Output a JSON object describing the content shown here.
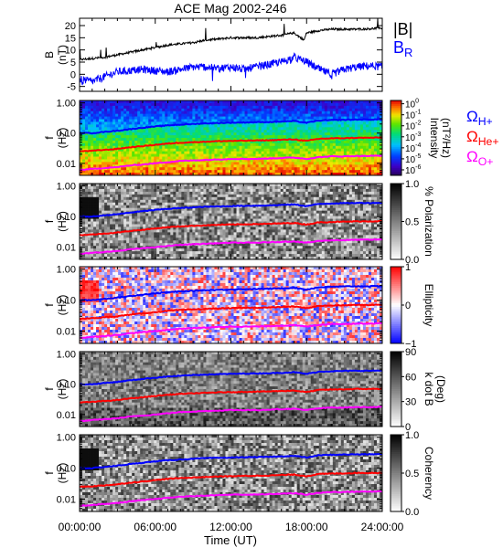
{
  "title": "ACE Mag 2002-246",
  "colors": {
    "btotal": "#000000",
    "br": "#0000ff",
    "h_plus": "#0000ff",
    "he_plus": "#ff0000",
    "o_plus": "#ff00ff"
  },
  "chart_data": [
    {
      "type": "line",
      "panel": "magnetic-field",
      "ylabel_top": "B",
      "ylabel_bottom": "(nT)",
      "ylim": [
        -7,
        23
      ],
      "yticks": [
        -5,
        0,
        5,
        10,
        15,
        20
      ],
      "ytick_labels": [
        "-5",
        "0",
        "5",
        "10",
        "15",
        "20"
      ],
      "xlim": [
        0,
        24
      ],
      "series": [
        {
          "name": "|B|",
          "color": "#000000",
          "x": [
            0,
            1,
            2,
            3,
            4,
            5,
            6,
            7,
            8,
            9,
            10,
            11,
            12,
            13,
            14,
            15,
            16,
            17,
            17.8,
            18,
            19,
            20,
            21,
            22,
            23,
            24
          ],
          "values": [
            6,
            6.5,
            7,
            8,
            9,
            10,
            11,
            12,
            12.5,
            13,
            14,
            14.5,
            15,
            15,
            15,
            15.5,
            16,
            17,
            14,
            17,
            18,
            18.5,
            18.5,
            18.5,
            18.7,
            19
          ]
        },
        {
          "name": "B_R",
          "label_main": "B",
          "label_sub": "R",
          "color": "#0000ff",
          "x": [
            0,
            1,
            2,
            3,
            4,
            5,
            6,
            7,
            8,
            9,
            10,
            11,
            12,
            13,
            14,
            15,
            16,
            17,
            18,
            19,
            20,
            21,
            22,
            23,
            24
          ],
          "values": [
            -2,
            -3,
            -1,
            1,
            1.5,
            2,
            1.5,
            1,
            2,
            3,
            3,
            2.5,
            3,
            2,
            3,
            4,
            5,
            7,
            5,
            2,
            0,
            2,
            3,
            3.5,
            3
          ]
        }
      ]
    },
    {
      "type": "heatmap",
      "panel": "intensity",
      "ylabel_top": "f",
      "ylabel_bottom": "(Hz)",
      "ylim": [
        0.004,
        1.2
      ],
      "log_y": true,
      "yticks": [
        0.01,
        0.1,
        1
      ],
      "ytick_labels": [
        "0.01",
        "0.10",
        "1.00"
      ],
      "colorbar": {
        "palette": "rainbow",
        "title_line1": "Intensity",
        "title_line2": "(nT²/Hz)",
        "log_scale": true,
        "range": [
          -6.5,
          0.3
        ],
        "ticks": [
          {
            "value": 0,
            "base": "10",
            "exp": "0"
          },
          {
            "value": -1,
            "base": "10",
            "exp": "-1"
          },
          {
            "value": -2,
            "base": "10",
            "exp": "-2"
          },
          {
            "value": -3,
            "base": "10",
            "exp": "-3"
          },
          {
            "value": -4,
            "base": "10",
            "exp": "-4"
          },
          {
            "value": -5,
            "base": "10",
            "exp": "-5"
          },
          {
            "value": -6,
            "base": "10",
            "exp": "-6"
          }
        ]
      },
      "legend": [
        {
          "main": "Ω",
          "sub": "H+",
          "color": "#0000ff"
        },
        {
          "main": "Ω",
          "sub": "He+",
          "color": "#ff0000"
        },
        {
          "main": "Ω",
          "sub": "O+",
          "color": "#ff00ff"
        }
      ]
    },
    {
      "type": "heatmap",
      "panel": "polarization",
      "ylabel_top": "f",
      "ylabel_bottom": "(Hz)",
      "ylim": [
        0.004,
        1.2
      ],
      "log_y": true,
      "yticks": [
        0.01,
        0.1,
        1
      ],
      "ytick_labels": [
        "0.01",
        "0.10",
        "1.00"
      ],
      "colorbar": {
        "palette": "gray",
        "title_line1": "% Polarization",
        "title_line2": "",
        "range": [
          0,
          1
        ],
        "ticks": [
          {
            "value": 1.0,
            "label": "1.0"
          },
          {
            "value": 0.5,
            "label": "0.5"
          },
          {
            "value": 0.0,
            "label": "0.0"
          }
        ]
      }
    },
    {
      "type": "heatmap",
      "panel": "ellipticity",
      "ylabel_top": "f",
      "ylabel_bottom": "(Hz)",
      "ylim": [
        0.004,
        1.2
      ],
      "log_y": true,
      "yticks": [
        0.01,
        0.1,
        1
      ],
      "ytick_labels": [
        "0.01",
        "0.10",
        "1.00"
      ],
      "colorbar": {
        "palette": "bluewhitered",
        "title_line1": "Ellipticity",
        "title_line2": "",
        "range": [
          -1,
          1
        ],
        "ticks": [
          {
            "value": 1,
            "label": "1"
          },
          {
            "value": 0,
            "label": "0"
          },
          {
            "value": -1,
            "label": "−1"
          }
        ]
      }
    },
    {
      "type": "heatmap",
      "panel": "k-dot-b",
      "ylabel_top": "f",
      "ylabel_bottom": "(Hz)",
      "ylim": [
        0.004,
        1.2
      ],
      "log_y": true,
      "yticks": [
        0.01,
        0.1,
        1
      ],
      "ytick_labels": [
        "0.01",
        "0.10",
        "1.00"
      ],
      "colorbar": {
        "palette": "gray",
        "title_line1": "k dot B",
        "title_line2": "(Deg)",
        "range": [
          0,
          90
        ],
        "ticks": [
          {
            "value": 90,
            "label": "90"
          },
          {
            "value": 60,
            "label": "60"
          },
          {
            "value": 30,
            "label": "30"
          },
          {
            "value": 0,
            "label": "0"
          }
        ]
      }
    },
    {
      "type": "heatmap",
      "panel": "coherency",
      "ylabel_top": "f",
      "ylabel_bottom": "(Hz)",
      "ylim": [
        0.004,
        1.2
      ],
      "log_y": true,
      "yticks": [
        0.01,
        0.1,
        1
      ],
      "ytick_labels": [
        "0.01",
        "0.10",
        "1.00"
      ],
      "colorbar": {
        "palette": "gray",
        "title_line1": "Coherency",
        "title_line2": "",
        "range": [
          0,
          1
        ],
        "ticks": [
          {
            "value": 1.0,
            "label": "1.0"
          },
          {
            "value": 0.5,
            "label": "0.5"
          },
          {
            "value": 0.0,
            "label": "0.0"
          }
        ]
      }
    }
  ],
  "gyrofrequencies": {
    "x": [
      0,
      1,
      2,
      3,
      4,
      5,
      6,
      7,
      8,
      9,
      10,
      11,
      12,
      13,
      14,
      15,
      16,
      17,
      18,
      19,
      20,
      21,
      22,
      23,
      24
    ],
    "h_plus": [
      0.1,
      0.1,
      0.11,
      0.12,
      0.135,
      0.15,
      0.165,
      0.18,
      0.19,
      0.2,
      0.21,
      0.215,
      0.22,
      0.225,
      0.228,
      0.232,
      0.24,
      0.25,
      0.22,
      0.26,
      0.27,
      0.275,
      0.28,
      0.28,
      0.285
    ],
    "he_plus": [
      0.025,
      0.026,
      0.028,
      0.03,
      0.034,
      0.037,
      0.041,
      0.045,
      0.048,
      0.05,
      0.052,
      0.054,
      0.055,
      0.056,
      0.057,
      0.058,
      0.06,
      0.062,
      0.055,
      0.065,
      0.067,
      0.068,
      0.07,
      0.07,
      0.071
    ],
    "o_plus": [
      0.006,
      0.0065,
      0.007,
      0.0075,
      0.0085,
      0.0092,
      0.01,
      0.011,
      0.012,
      0.0125,
      0.013,
      0.0135,
      0.014,
      0.014,
      0.014,
      0.0145,
      0.015,
      0.0155,
      0.014,
      0.016,
      0.017,
      0.017,
      0.0175,
      0.0175,
      0.018
    ]
  },
  "x_axis": {
    "label": "Time (UT)",
    "range_hours": [
      0,
      24
    ],
    "ticks": [
      {
        "hour": 0,
        "label": "00:00:00"
      },
      {
        "hour": 6,
        "label": "06:00:00"
      },
      {
        "hour": 12,
        "label": "12:00:00"
      },
      {
        "hour": 18,
        "label": "18:00:00"
      },
      {
        "hour": 24,
        "label": "24:00:00"
      }
    ]
  }
}
